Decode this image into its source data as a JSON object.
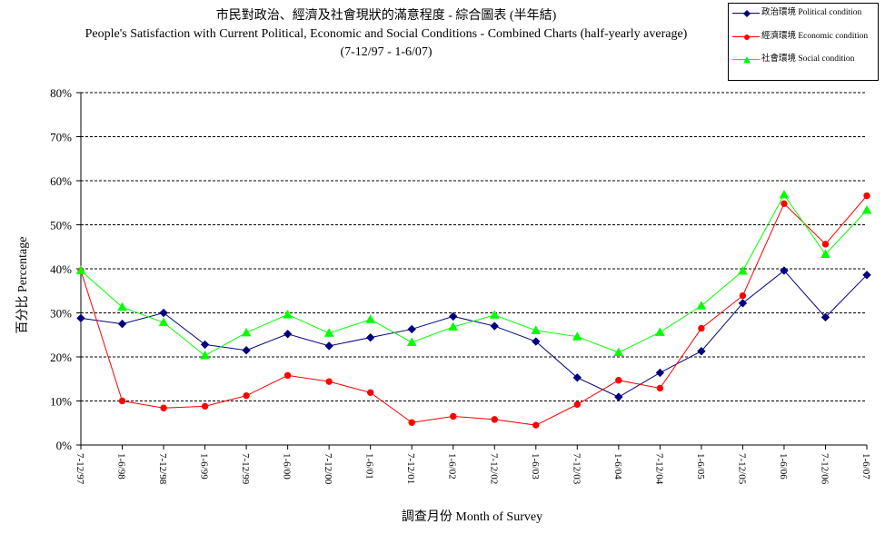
{
  "chart_data": {
    "type": "line",
    "title": "市民對政治、經濟及社會現狀的滿意程度 - 綜合圖表 (半年結)",
    "subtitle": "People's Satisfaction with Current Political, Economic and Social Conditions - Combined Charts (half-yearly average)",
    "subtitle2": "(7-12/97 - 1-6/07)",
    "xlabel": "調查月份 Month of Survey",
    "ylabel": "百分比 Percentage",
    "ylim": [
      0,
      80
    ],
    "yticks": [
      "0%",
      "10%",
      "20%",
      "30%",
      "40%",
      "50%",
      "60%",
      "70%",
      "80%"
    ],
    "grid": true,
    "legend_position": "top-right",
    "categories": [
      "7-12/97",
      "1-6/98",
      "7-12/98",
      "1-6/99",
      "7-12/99",
      "1-6/00",
      "7-12/00",
      "1-6/01",
      "7-12/01",
      "1-6/02",
      "7-12/02",
      "1-6/03",
      "7-12/03",
      "1-6/04",
      "7-12/04",
      "1-6/05",
      "7-12/05",
      "1-6/06",
      "7-12/06",
      "1-6/07"
    ],
    "series": [
      {
        "name": "政治環境 Political condition",
        "color": "#000080",
        "marker": "diamond",
        "values": [
          28.8,
          27.5,
          30.0,
          22.8,
          21.5,
          25.2,
          22.5,
          24.4,
          26.3,
          29.2,
          27.0,
          23.5,
          15.3,
          10.9,
          16.4,
          21.3,
          32.2,
          39.6,
          29.0,
          38.6
        ]
      },
      {
        "name": "經濟環境 Economic condition",
        "color": "#ff0000",
        "marker": "circle",
        "values": [
          39.6,
          10.0,
          8.4,
          8.8,
          11.2,
          15.8,
          14.4,
          11.9,
          5.1,
          6.5,
          5.8,
          4.5,
          9.2,
          14.7,
          12.9,
          26.5,
          33.9,
          54.8,
          45.6,
          56.6
        ]
      },
      {
        "name": "社會環境 Social condition",
        "color": "#00ff00",
        "marker": "triangle",
        "values": [
          39.6,
          31.3,
          27.8,
          20.3,
          25.5,
          29.6,
          25.4,
          28.5,
          23.3,
          26.8,
          29.5,
          26.0,
          24.6,
          21.0,
          25.6,
          31.6,
          39.5,
          56.8,
          43.3,
          53.3
        ]
      }
    ]
  }
}
